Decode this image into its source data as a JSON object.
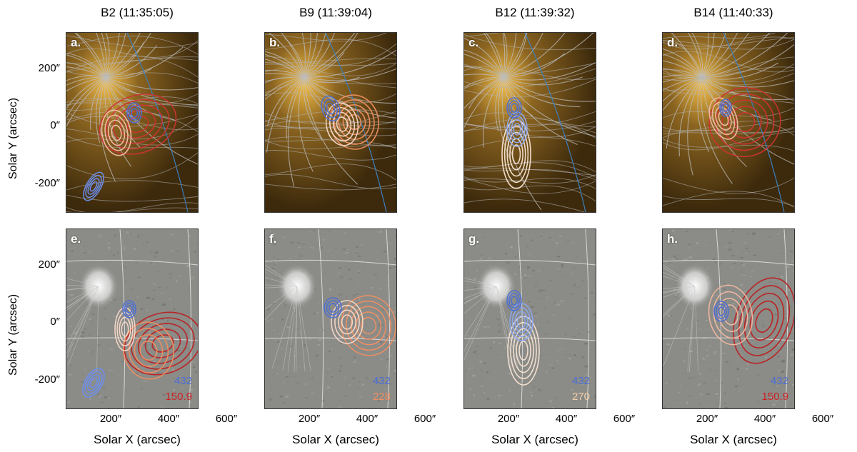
{
  "columns": [
    {
      "title": "B2 (11:35:05)"
    },
    {
      "title": "B9 (11:39:04)"
    },
    {
      "title": "B12 (11:39:32)"
    },
    {
      "title": "B14 (11:40:33)"
    }
  ],
  "panels_top": [
    {
      "letter": "a."
    },
    {
      "letter": "b."
    },
    {
      "letter": "c."
    },
    {
      "letter": "d."
    }
  ],
  "panels_bottom": [
    {
      "letter": "e.",
      "legend_top": "432",
      "legend_bottom": "150.9",
      "legend_bottom_color": "#cc2222"
    },
    {
      "letter": "f.",
      "legend_top": "432",
      "legend_bottom": "228",
      "legend_bottom_color": "#ef8f62"
    },
    {
      "letter": "g.",
      "legend_top": "432",
      "legend_bottom": "270",
      "legend_bottom_color": "#f3cfa8"
    },
    {
      "letter": "h.",
      "legend_top": "432",
      "legend_bottom": "150.9",
      "legend_bottom_color": "#cc2222"
    }
  ],
  "axes": {
    "ylabel": "Solar Y (arcsec)",
    "xlabel": "Solar X (arcsec)",
    "yticks": [
      "200″",
      "0″",
      "-200″"
    ],
    "xticks": [
      "200″",
      "400″",
      "600″"
    ]
  },
  "colors": {
    "low_freq": "#4b6fd6",
    "high_freq": "#cc2222",
    "aia_background": "#5a3d12",
    "field_lines": "#b9b9b9",
    "diff_background": "#8a8a86"
  }
}
